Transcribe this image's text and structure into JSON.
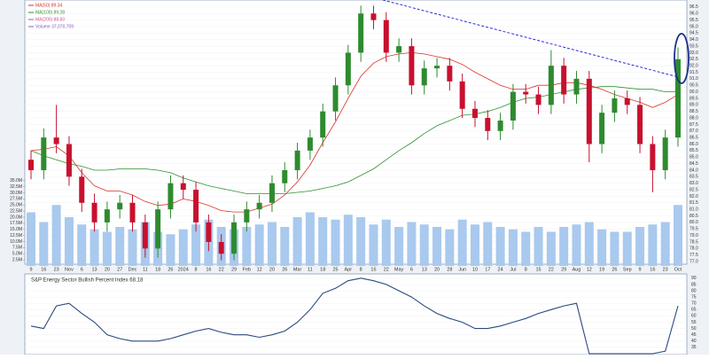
{
  "chart_data": {
    "type": "candlestick",
    "categories": [
      "9",
      "16",
      "23",
      "Nov",
      "6",
      "13",
      "20",
      "27",
      "Dec",
      "11",
      "18",
      "26",
      "2024",
      "8",
      "16",
      "22",
      "29",
      "Feb",
      "12",
      "20",
      "26",
      "Mar",
      "11",
      "18",
      "25",
      "Apr",
      "8",
      "15",
      "22",
      "May",
      "6",
      "13",
      "20",
      "28",
      "Jun",
      "10",
      "17",
      "24",
      "Jul",
      "8",
      "15",
      "22",
      "29",
      "Aug",
      "12",
      "19",
      "26",
      "Sep",
      "9",
      "16",
      "23",
      "Oct"
    ],
    "ohlc": {
      "open": [
        84.8,
        84.0,
        86.5,
        86.0,
        83.5,
        81.5,
        80.0,
        81.0,
        81.5,
        80.0,
        78.0,
        81.0,
        83.0,
        82.5,
        80.0,
        78.5,
        77.6,
        80.0,
        81.0,
        81.5,
        83.0,
        84.0,
        85.5,
        86.5,
        88.5,
        90.5,
        93.0,
        96.0,
        95.5,
        93.0,
        93.5,
        90.5,
        91.8,
        92.0,
        90.8,
        88.7,
        88.0,
        87.0,
        87.8,
        90.0,
        89.8,
        89.0,
        92.0,
        89.8,
        91.0,
        86.0,
        88.4,
        89.5,
        89.0,
        86.0,
        84.0,
        86.5
      ],
      "high": [
        85.5,
        87.2,
        89.0,
        86.6,
        84.1,
        82.2,
        81.6,
        82.1,
        82.1,
        80.6,
        81.6,
        83.6,
        83.6,
        83.1,
        80.6,
        79.1,
        80.6,
        81.6,
        82.1,
        83.6,
        84.6,
        86.1,
        87.1,
        89.1,
        91.1,
        93.6,
        96.6,
        96.6,
        96.1,
        94.1,
        94.1,
        92.4,
        92.6,
        92.6,
        91.4,
        89.3,
        88.6,
        88.4,
        90.6,
        90.6,
        90.4,
        93.2,
        92.6,
        91.6,
        91.6,
        89.0,
        90.1,
        90.1,
        89.6,
        86.6,
        87.1,
        93.4
      ],
      "low": [
        83.3,
        83.3,
        85.3,
        82.8,
        80.8,
        79.3,
        79.3,
        80.3,
        79.3,
        77.3,
        77.3,
        80.3,
        81.8,
        79.3,
        77.8,
        77.1,
        77.1,
        79.3,
        80.3,
        80.8,
        82.3,
        83.3,
        84.8,
        85.8,
        87.8,
        89.8,
        92.3,
        94.8,
        92.3,
        92.3,
        89.8,
        89.8,
        91.1,
        90.1,
        88.0,
        87.3,
        86.3,
        86.3,
        87.1,
        89.1,
        88.3,
        88.3,
        89.1,
        89.1,
        84.6,
        85.3,
        87.7,
        88.3,
        85.3,
        82.3,
        83.3,
        85.8
      ],
      "close": [
        84.0,
        86.5,
        86.0,
        83.5,
        81.5,
        80.0,
        81.0,
        81.5,
        80.0,
        78.0,
        81.0,
        83.0,
        82.5,
        80.0,
        78.5,
        77.6,
        80.0,
        81.0,
        81.5,
        83.0,
        84.0,
        85.5,
        86.5,
        88.5,
        90.5,
        93.0,
        96.0,
        95.5,
        93.0,
        93.5,
        90.5,
        91.8,
        92.0,
        90.8,
        88.7,
        88.0,
        87.0,
        87.8,
        90.0,
        89.8,
        89.0,
        92.0,
        89.8,
        91.0,
        86.0,
        88.4,
        89.5,
        89.0,
        86.0,
        84.0,
        86.5,
        92.5
      ],
      "up_color": "#2e8b2e",
      "down_color": "#c8102e"
    },
    "moving_averages": [
      {
        "name": "MA(50) 89.34",
        "color": "#d9342b",
        "values": [
          85.5,
          85.6,
          85.8,
          85.1,
          83.8,
          82.8,
          82.4,
          82.4,
          82.1,
          81.6,
          81.3,
          81.4,
          81.8,
          81.6,
          81.3,
          80.9,
          80.8,
          80.8,
          81.1,
          81.4,
          82.1,
          83.1,
          84.4,
          86.1,
          87.7,
          89.5,
          91.2,
          92.2,
          92.7,
          92.9,
          93.0,
          92.9,
          92.7,
          92.5,
          92.1,
          91.5,
          91.0,
          90.5,
          90.2,
          90.2,
          90.5,
          90.5,
          90.7,
          90.7,
          90.5,
          90.2,
          89.8,
          89.5,
          89.2,
          88.8,
          89.2,
          89.8
        ]
      },
      {
        "name": "MA(100) 89.28",
        "color": "#2f8f2f",
        "values": [
          85.5,
          85.1,
          84.8,
          84.5,
          84.3,
          84.0,
          84.0,
          84.1,
          84.1,
          84.1,
          84.0,
          83.8,
          83.4,
          83.1,
          82.8,
          82.6,
          82.4,
          82.2,
          82.2,
          82.2,
          82.2,
          82.3,
          82.4,
          82.6,
          82.8,
          83.1,
          83.6,
          84.1,
          84.8,
          85.5,
          86.1,
          86.8,
          87.4,
          87.8,
          88.2,
          88.3,
          88.5,
          88.8,
          89.2,
          89.5,
          89.6,
          89.8,
          90.0,
          90.2,
          90.3,
          90.4,
          90.4,
          90.3,
          90.2,
          90.2,
          90.0,
          90.0
        ]
      }
    ],
    "extra_legend": [
      {
        "text": "MA(200) 88.83",
        "color": "#d44fa0"
      },
      {
        "text": "Volume 37,070,709",
        "color": "#8a5cc4"
      }
    ],
    "ylim": [
      76.8,
      96.9
    ],
    "yticks": [
      {
        "value": 77,
        "label": "77.0"
      },
      77.5,
      {
        "value": 78,
        "label": "78.0"
      },
      78.5,
      {
        "value": 79,
        "label": "79.0"
      },
      79.5,
      {
        "value": 80,
        "label": "80.0"
      },
      80.5,
      {
        "value": 81,
        "label": "81.0"
      },
      81.5,
      {
        "value": 82,
        "label": "82.0"
      },
      82.5,
      {
        "value": 83,
        "label": "83.0"
      },
      83.5,
      {
        "value": 84,
        "label": "84.0"
      },
      84.5,
      {
        "value": 85,
        "label": "85.0"
      },
      85.5,
      {
        "value": 86,
        "label": "86.0"
      },
      86.5,
      {
        "value": 87,
        "label": "87.0"
      },
      87.5,
      {
        "value": 88,
        "label": "88.0"
      },
      88.5,
      {
        "value": 89,
        "label": "89.0"
      },
      89.5,
      {
        "value": 90,
        "label": "90.0"
      },
      90.5,
      {
        "value": 91,
        "label": "91.0"
      },
      91.5,
      {
        "value": 92,
        "label": "92.0"
      },
      92.5,
      {
        "value": 93,
        "label": "93.0"
      },
      93.5,
      {
        "value": 94,
        "label": "94.0"
      },
      94.5,
      {
        "value": 95,
        "label": "95.0"
      },
      95.5,
      {
        "value": 96,
        "label": "96.0"
      },
      96.5
    ],
    "volume": {
      "color": "#a9c9ee",
      "values": [
        22,
        18,
        25,
        20,
        17,
        15,
        14,
        16,
        15,
        18,
        14,
        13,
        15,
        17,
        19,
        16,
        15,
        16,
        17,
        18,
        16,
        20,
        22,
        20,
        19,
        21,
        20,
        17,
        19,
        16,
        18,
        17,
        16,
        15,
        19,
        17,
        18,
        16,
        15,
        14,
        16,
        14,
        16,
        17,
        18,
        15,
        14,
        14,
        16,
        17,
        18,
        25
      ],
      "ylim": [
        0,
        36
      ],
      "yticks": [
        {
          "value": 35,
          "label": "35.0M"
        },
        {
          "value": 32.5,
          "label": "32.5M"
        },
        {
          "value": 30,
          "label": "30.0M"
        },
        {
          "value": 27.5,
          "label": "27.5M"
        },
        {
          "value": 25,
          "label": "25.0M"
        },
        {
          "value": 22.5,
          "label": "22.5M"
        },
        {
          "value": 20,
          "label": "20.0M"
        },
        {
          "value": 17.5,
          "label": "17.5M"
        },
        {
          "value": 15,
          "label": "15.0M"
        },
        {
          "value": 12.5,
          "label": "12.5M"
        },
        {
          "value": 10,
          "label": "10.0M"
        },
        {
          "value": 7.5,
          "label": "7.5M"
        },
        {
          "value": 5,
          "label": "5.0M"
        },
        {
          "value": 2.5,
          "label": "2.5M"
        }
      ]
    },
    "indicator": {
      "title": "S&P Energy Sector Bullish Percent Index 68.18",
      "color": "#2a4a7f",
      "values": [
        52,
        50,
        68,
        70,
        62,
        55,
        45,
        42,
        40,
        40,
        40,
        42,
        45,
        48,
        50,
        47,
        45,
        45,
        43,
        45,
        48,
        55,
        65,
        78,
        82,
        88,
        90,
        88,
        85,
        80,
        75,
        68,
        62,
        58,
        55,
        50,
        50,
        52,
        55,
        58,
        62,
        65,
        68,
        70,
        30,
        30,
        30,
        30,
        30,
        30,
        32,
        68
      ],
      "ylim": [
        30,
        92
      ],
      "yticks": [
        90,
        85,
        80,
        75,
        70,
        65,
        60,
        55,
        50,
        45,
        40,
        35
      ]
    }
  }
}
